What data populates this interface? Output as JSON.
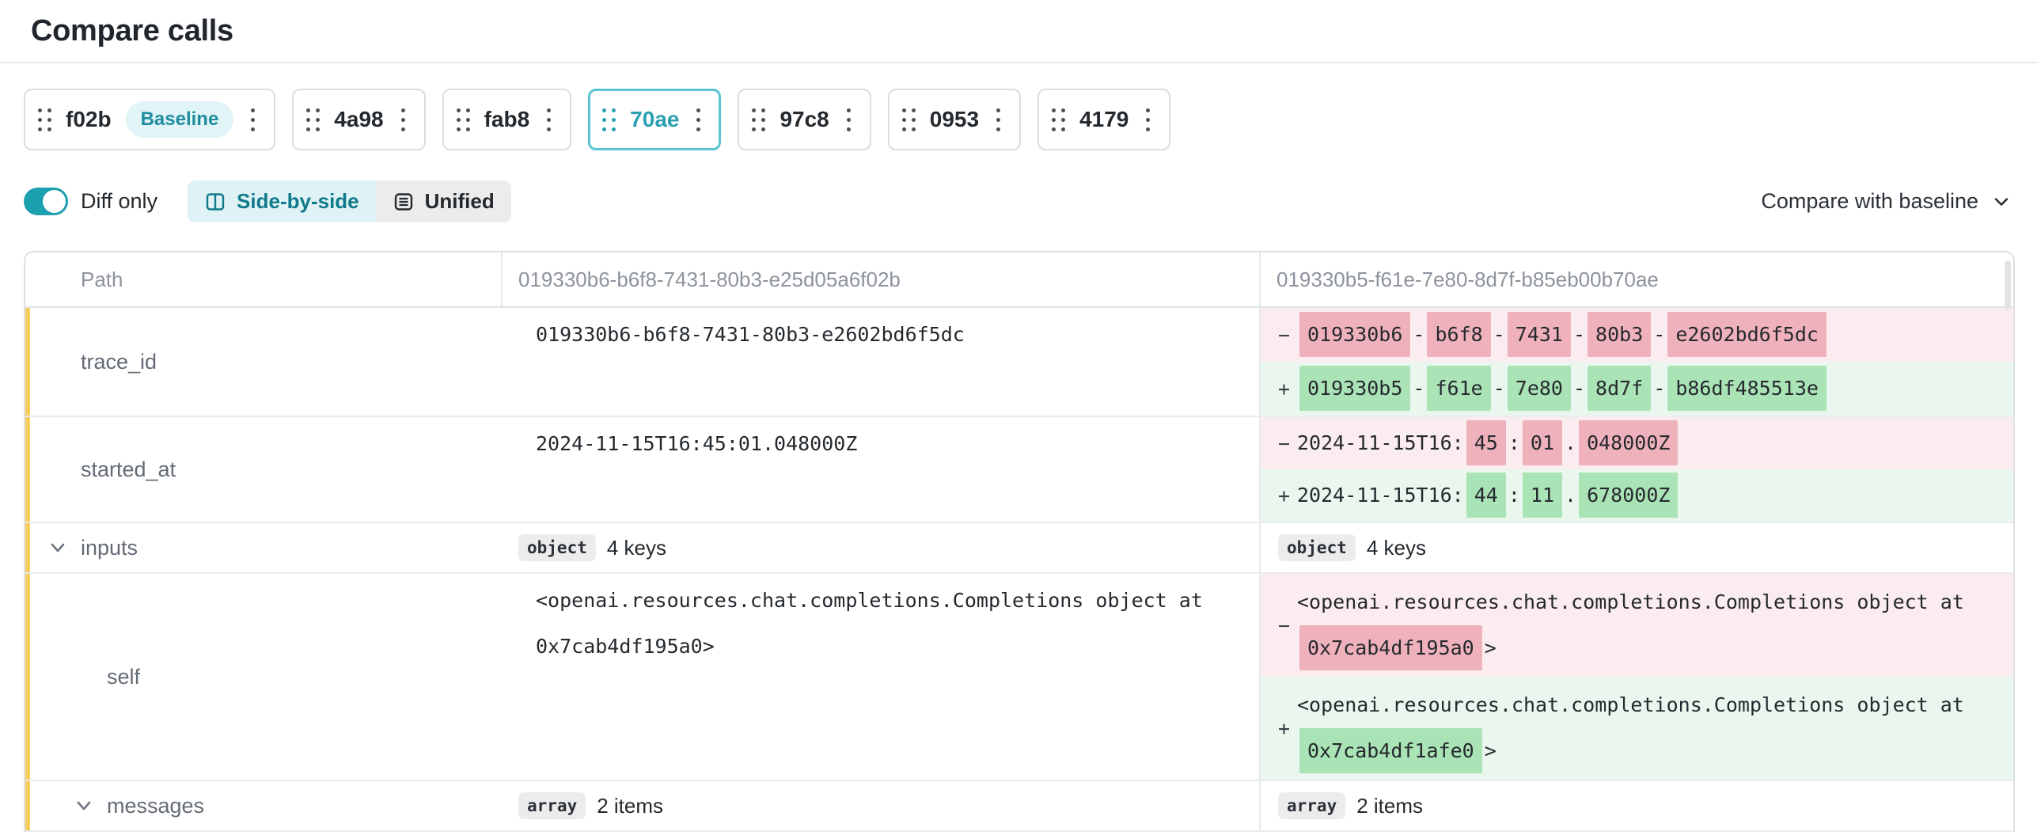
{
  "page": {
    "title": "Compare calls"
  },
  "calls": [
    {
      "id": "f02b",
      "baseline": true,
      "selected": false
    },
    {
      "id": "4a98",
      "baseline": false,
      "selected": false
    },
    {
      "id": "fab8",
      "baseline": false,
      "selected": false
    },
    {
      "id": "70ae",
      "baseline": false,
      "selected": true
    },
    {
      "id": "97c8",
      "baseline": false,
      "selected": false
    },
    {
      "id": "0953",
      "baseline": false,
      "selected": false
    },
    {
      "id": "4179",
      "baseline": false,
      "selected": false
    }
  ],
  "controls": {
    "baseline_badge_label": "Baseline",
    "diff_only_label": "Diff only",
    "diff_only_on": true,
    "side_by_side_label": "Side-by-side",
    "unified_label": "Unified",
    "view_mode_selected": "Side-by-side",
    "compare_with_baseline_label": "Compare with baseline"
  },
  "table": {
    "columns": [
      "Path",
      "019330b6-b6f8-7431-80b3-e25d05a6f02b",
      "019330b5-f61e-7e80-8d7f-b85eb00b70ae"
    ],
    "diff_signs": {
      "del": "−",
      "add": "+"
    },
    "rows": [
      {
        "path": "trace_id",
        "level": 1,
        "expandable": false,
        "changed": true,
        "left": {
          "type": "value",
          "text": "019330b6-b6f8-7431-80b3-e2602bd6f5dc"
        },
        "right": {
          "type": "diff",
          "del": [
            {
              "t": "019330b6",
              "hl": true
            },
            {
              "t": "-"
            },
            {
              "t": "b6f8",
              "hl": true
            },
            {
              "t": "-"
            },
            {
              "t": "7431",
              "hl": true
            },
            {
              "t": "-"
            },
            {
              "t": "80b3",
              "hl": true
            },
            {
              "t": "-"
            },
            {
              "t": "e2602bd6f5dc",
              "hl": true
            }
          ],
          "add": [
            {
              "t": "019330b5",
              "hl": true
            },
            {
              "t": "-"
            },
            {
              "t": "f61e",
              "hl": true
            },
            {
              "t": "-"
            },
            {
              "t": "7e80",
              "hl": true
            },
            {
              "t": "-"
            },
            {
              "t": "8d7f",
              "hl": true
            },
            {
              "t": "-"
            },
            {
              "t": "b86df485513e",
              "hl": true
            }
          ]
        }
      },
      {
        "path": "started_at",
        "level": 1,
        "expandable": false,
        "changed": true,
        "left": {
          "type": "value",
          "text": "2024-11-15T16:45:01.048000Z"
        },
        "right": {
          "type": "diff",
          "del": [
            {
              "t": "2024-11-15T16:"
            },
            {
              "t": "45",
              "hl": true
            },
            {
              "t": ":"
            },
            {
              "t": "01",
              "hl": true
            },
            {
              "t": "."
            },
            {
              "t": "048000Z",
              "hl": true
            }
          ],
          "add": [
            {
              "t": "2024-11-15T16:"
            },
            {
              "t": "44",
              "hl": true
            },
            {
              "t": ":"
            },
            {
              "t": "11",
              "hl": true
            },
            {
              "t": "."
            },
            {
              "t": "678000Z",
              "hl": true
            }
          ]
        }
      },
      {
        "path": "inputs",
        "level": 1,
        "expandable": true,
        "changed": true,
        "left": {
          "type": "badge",
          "badge": "object",
          "summary": "4 keys"
        },
        "right": {
          "type": "badge",
          "badge": "object",
          "summary": "4 keys"
        }
      },
      {
        "path": "self",
        "level": 2,
        "expandable": false,
        "changed": true,
        "left": {
          "type": "value",
          "text": "<openai.resources.chat.completions.Completions object at 0x7cab4df195a0>"
        },
        "right": {
          "type": "diff",
          "del": [
            {
              "t": "<openai.resources.chat.completions.Completions object at "
            },
            {
              "t": "0x7cab4df195a0",
              "hl": true
            },
            {
              "t": ">"
            }
          ],
          "add": [
            {
              "t": "<openai.resources.chat.completions.Completions object at "
            },
            {
              "t": "0x7cab4df1afe0",
              "hl": true
            },
            {
              "t": ">"
            }
          ]
        }
      },
      {
        "path": "messages",
        "level": 2,
        "expandable": true,
        "changed": true,
        "left": {
          "type": "badge",
          "badge": "array",
          "summary": "2 items"
        },
        "right": {
          "type": "badge",
          "badge": "array",
          "summary": "2 items"
        }
      }
    ]
  },
  "colors": {
    "teal": "#1C9FAF",
    "teal_text": "#0F7A8A",
    "teal_light": "#DFF2F6",
    "selected_border": "#5BC4D2",
    "pill_bg": "#E1F4F8",
    "pill_text": "#1D8D9E",
    "changed_marker": "#F7CD5F",
    "del_line_bg": "#FBEDEF",
    "del_token_bg": "#EFB2BC",
    "add_line_bg": "#EAF7EE",
    "add_token_bg": "#A9E3B6",
    "badge_bg": "#ECECEC",
    "border": "#DFE0E2",
    "text_primary": "#24292E",
    "text_muted": "#8D939D",
    "text_label": "#646B75"
  }
}
